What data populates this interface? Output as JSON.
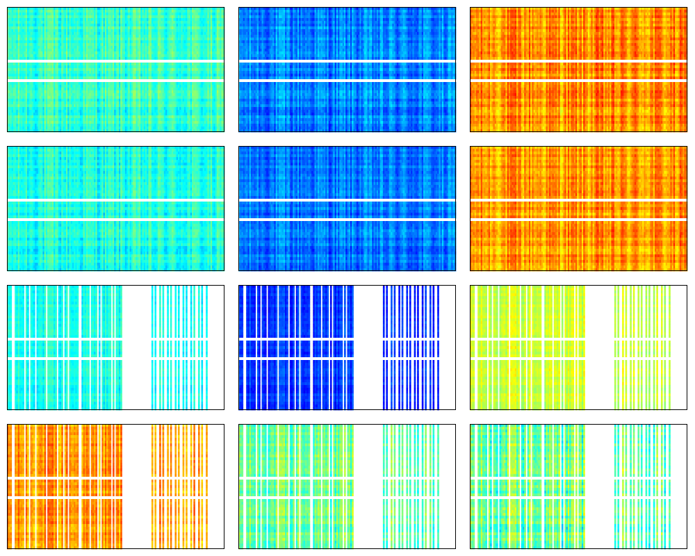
{
  "chart_data": [
    {
      "type": "heatmap",
      "row": 1,
      "col": 1,
      "colormap": "jet",
      "level_range": [
        0.3,
        0.55
      ],
      "visible_columns": "all",
      "separator_rows": [
        0.42,
        0.57
      ]
    },
    {
      "type": "heatmap",
      "row": 1,
      "col": 2,
      "colormap": "jet",
      "level_range": [
        0.12,
        0.38
      ],
      "visible_columns": "all",
      "separator_rows": [
        0.42,
        0.57
      ]
    },
    {
      "type": "heatmap",
      "row": 1,
      "col": 3,
      "colormap": "jet",
      "level_range": [
        0.58,
        0.88
      ],
      "visible_columns": "all",
      "separator_rows": [
        0.42,
        0.57
      ]
    },
    {
      "type": "heatmap",
      "row": 2,
      "col": 1,
      "colormap": "jet",
      "level_range": [
        0.28,
        0.52
      ],
      "visible_columns": "all",
      "separator_rows": [
        0.42,
        0.57
      ]
    },
    {
      "type": "heatmap",
      "row": 2,
      "col": 2,
      "colormap": "jet",
      "level_range": [
        0.12,
        0.36
      ],
      "visible_columns": "all",
      "separator_rows": [
        0.42,
        0.57
      ]
    },
    {
      "type": "heatmap",
      "row": 2,
      "col": 3,
      "colormap": "jet",
      "level_range": [
        0.58,
        0.86
      ],
      "visible_columns": "all",
      "separator_rows": [
        0.42,
        0.57
      ]
    },
    {
      "type": "heatmap",
      "row": 3,
      "col": 1,
      "colormap": "jet",
      "level_range": [
        0.3,
        0.48
      ],
      "visible_columns": "sparse",
      "separator_rows": [
        0.42,
        0.57
      ]
    },
    {
      "type": "heatmap",
      "row": 3,
      "col": 2,
      "colormap": "jet",
      "level_range": [
        0.08,
        0.26
      ],
      "visible_columns": "sparse",
      "separator_rows": [
        0.42,
        0.57
      ]
    },
    {
      "type": "heatmap",
      "row": 3,
      "col": 3,
      "colormap": "jet",
      "level_range": [
        0.48,
        0.66
      ],
      "visible_columns": "sparse",
      "separator_rows": [
        0.42,
        0.57
      ]
    },
    {
      "type": "heatmap",
      "row": 4,
      "col": 1,
      "colormap": "jet",
      "level_range": [
        0.6,
        0.84
      ],
      "visible_columns": "sparse",
      "separator_rows": [
        0.42,
        0.57
      ]
    },
    {
      "type": "heatmap",
      "row": 4,
      "col": 2,
      "colormap": "jet",
      "level_range": [
        0.32,
        0.62
      ],
      "visible_columns": "sparse",
      "separator_rows": [
        0.42,
        0.57
      ]
    },
    {
      "type": "heatmap",
      "row": 4,
      "col": 3,
      "colormap": "jet",
      "level_range": [
        0.28,
        0.66
      ],
      "visible_columns": "sparse",
      "separator_rows": [
        0.42,
        0.57
      ]
    }
  ],
  "background_color": "#ffffff",
  "frame_color": "#000000",
  "separator_color": "#ffffff"
}
